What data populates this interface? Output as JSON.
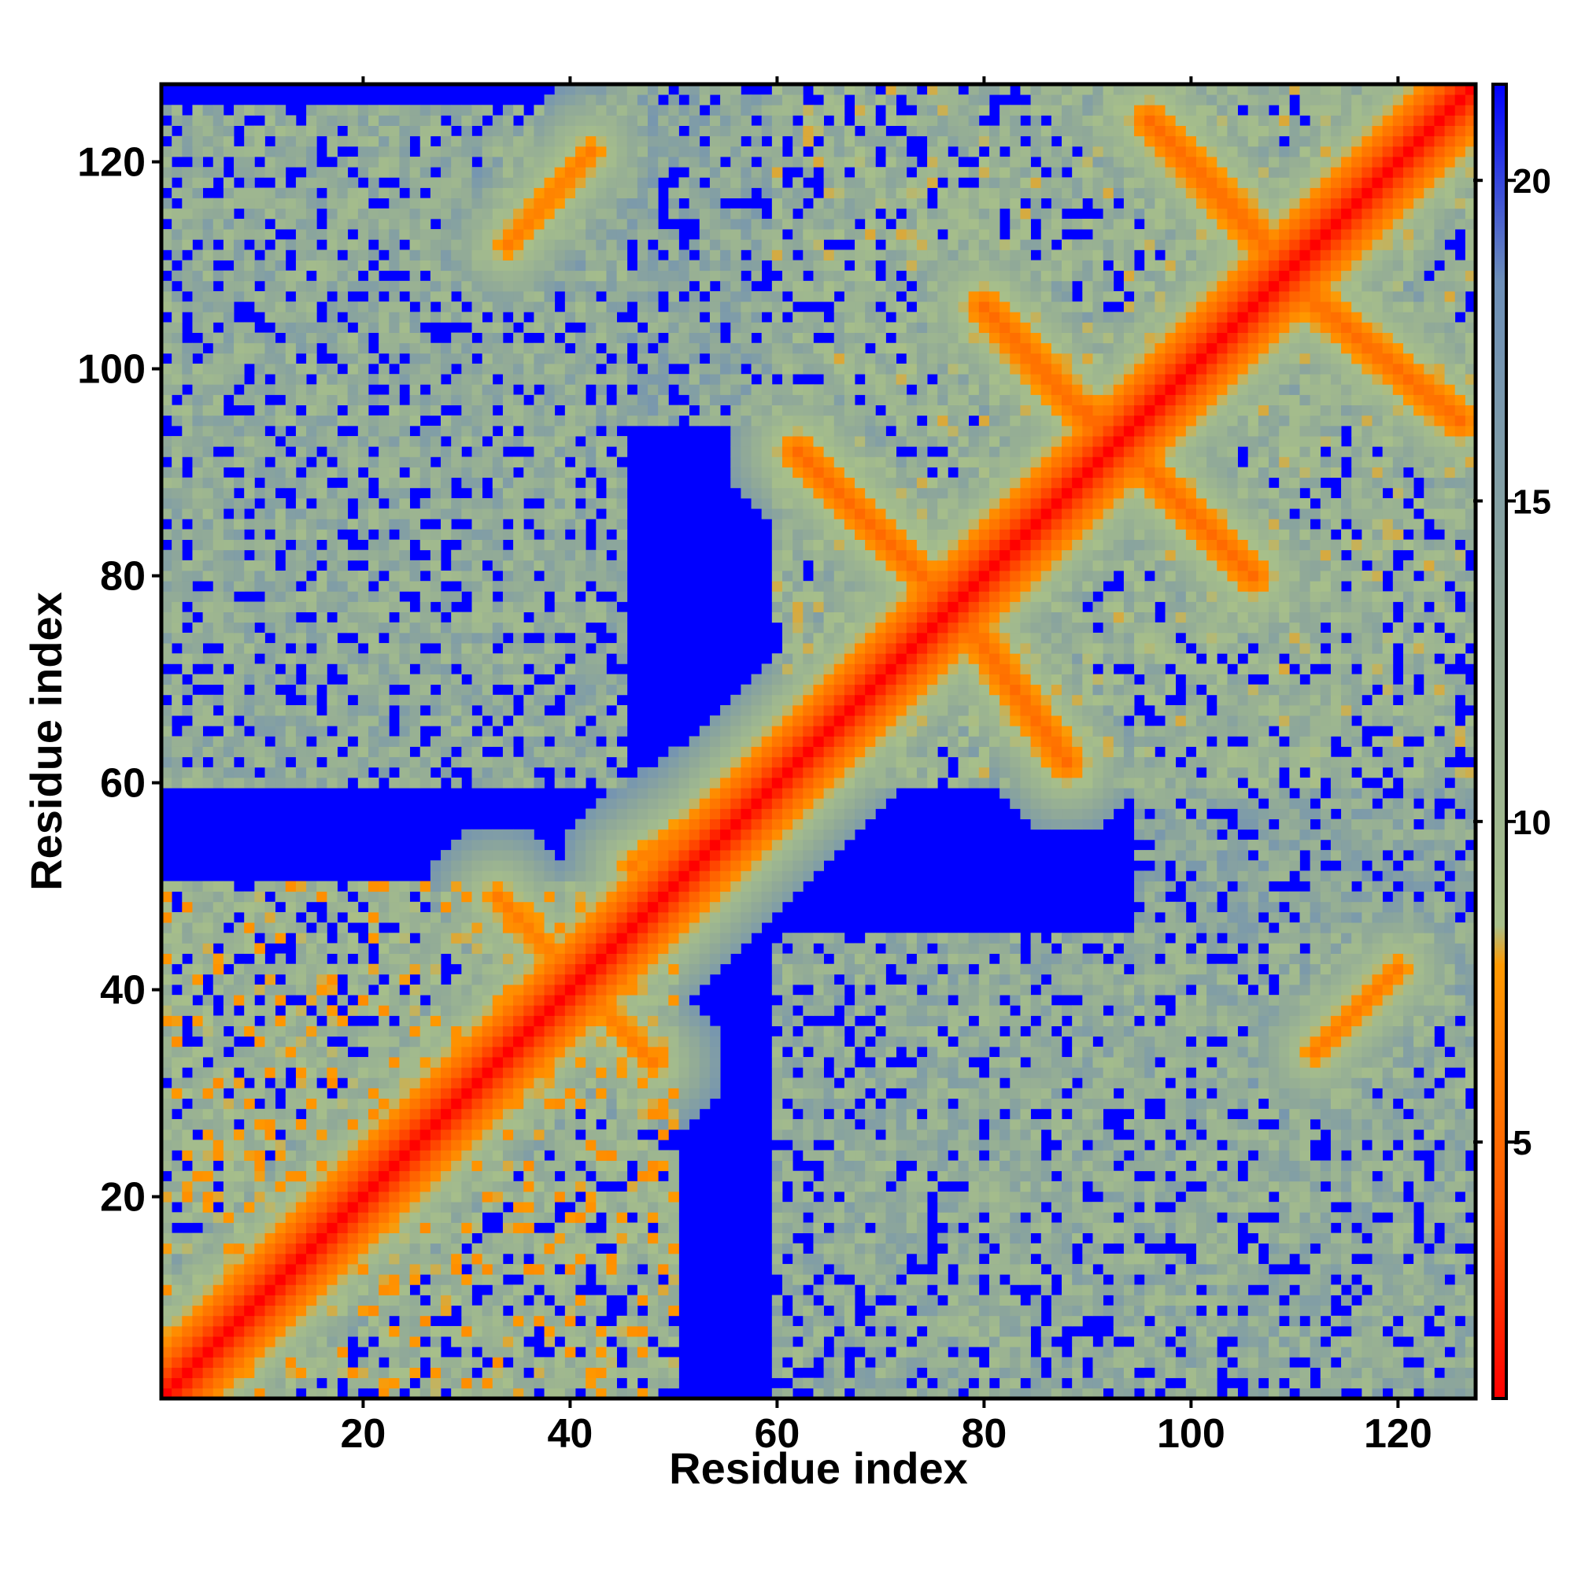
{
  "chart_data": {
    "type": "heatmap",
    "title": "",
    "xlabel": "Residue index",
    "ylabel": "Residue index",
    "n_residues": 127,
    "xlim": [
      1,
      127
    ],
    "ylim": [
      1,
      127
    ],
    "x_ticks": [
      20,
      40,
      60,
      80,
      100,
      120
    ],
    "y_ticks": [
      20,
      40,
      60,
      80,
      100,
      120
    ],
    "x_tick_labels": [
      "20",
      "40",
      "60",
      "80",
      "100",
      "120"
    ],
    "y_tick_labels": [
      "20",
      "40",
      "60",
      "80",
      "100",
      "120"
    ],
    "colorbar": {
      "range": [
        1,
        21.5
      ],
      "ticks": [
        5,
        10,
        15,
        20
      ],
      "tick_labels": [
        "5",
        "10",
        "15",
        "20"
      ],
      "colors": [
        "#ff0000",
        "#ff5a00",
        "#ff9900",
        "#a7bf8a",
        "#8fa899",
        "#6d8fb8",
        "#0000ff"
      ],
      "stops": [
        0,
        0.15,
        0.33,
        0.36,
        0.6,
        0.85,
        1
      ]
    },
    "contact_bands": [
      {
        "name": "diagonal",
        "from": [
          1,
          1
        ],
        "to": [
          127,
          127
        ],
        "level": 1
      },
      {
        "name": "helix-hairpin-A",
        "from": [
          88,
          62
        ],
        "to": [
          78,
          76
        ],
        "level": 5
      },
      {
        "name": "helix-hairpin-B",
        "from": [
          62,
          92
        ],
        "to": [
          76,
          78
        ],
        "level": 5
      },
      {
        "name": "helix-hairpin-C",
        "from": [
          90,
          96
        ],
        "to": [
          106,
          80
        ],
        "level": 5
      },
      {
        "name": "helix-hairpin-D",
        "from": [
          80,
          106
        ],
        "to": [
          91,
          94
        ],
        "level": 5
      },
      {
        "name": "helix-hairpin-E",
        "from": [
          96,
          124
        ],
        "to": [
          110,
          109
        ],
        "level": 5
      },
      {
        "name": "helix-hairpin-F",
        "from": [
          110,
          108
        ],
        "to": [
          126,
          95
        ],
        "level": 5
      },
      {
        "name": "strand-pair-A",
        "from": [
          34,
          112
        ],
        "to": [
          42,
          121
        ],
        "level": 6
      },
      {
        "name": "strand-pair-B",
        "from": [
          112,
          34
        ],
        "to": [
          120,
          42
        ],
        "level": 6
      },
      {
        "name": "strand-pair-C",
        "from": [
          33,
          49
        ],
        "to": [
          48,
          33
        ],
        "level": 6
      },
      {
        "name": "strand-pair-D",
        "from": [
          46,
          52
        ],
        "to": [
          58,
          60
        ],
        "level": 6
      }
    ],
    "contact_regions": [
      {
        "x": [
          1,
          50
        ],
        "y": [
          1,
          50
        ],
        "level": 11
      },
      {
        "x": [
          1,
          45
        ],
        "y": [
          60,
          125
        ],
        "level": 13
      },
      {
        "x": [
          60,
          127
        ],
        "y": [
          1,
          45
        ],
        "level": 13
      },
      {
        "x": [
          60,
          127
        ],
        "y": [
          60,
          127
        ],
        "level": 12
      },
      {
        "x": [
          40,
          62
        ],
        "y": [
          95,
          127
        ],
        "level": 14
      },
      {
        "x": [
          95,
          127
        ],
        "y": [
          40,
          62
        ],
        "level": 14
      }
    ]
  }
}
